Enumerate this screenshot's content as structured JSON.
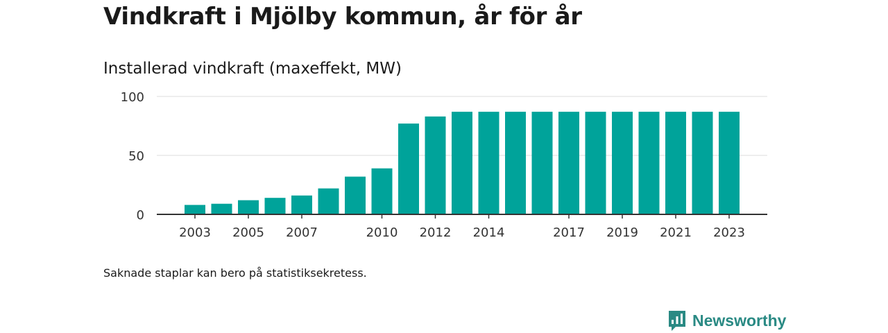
{
  "title": "Vindkraft i Mjölby kommun, år för år",
  "subtitle": "Installerad vindkraft (maxeffekt, MW)",
  "footnote": "Saknade staplar kan bero på statistiksekretess.",
  "brand": {
    "name": "Newsworthy",
    "icon": "newsworthy-logo-icon"
  },
  "colors": {
    "bar": "#00a39a",
    "grid": "#dddddd",
    "axis": "#333333",
    "brand": "#2a8a84"
  },
  "chart_data": {
    "type": "bar",
    "x": [
      2003,
      2004,
      2005,
      2006,
      2007,
      2008,
      2009,
      2010,
      2011,
      2012,
      2013,
      2014,
      2015,
      2016,
      2017,
      2018,
      2019,
      2020,
      2021,
      2022,
      2023
    ],
    "values": [
      8,
      9,
      12,
      14,
      16,
      22,
      32,
      39,
      77,
      83,
      87,
      87,
      87,
      87,
      87,
      87,
      87,
      87,
      87,
      87,
      87
    ],
    "x_tick_labels": [
      "2003",
      "2005",
      "2007",
      "2010",
      "2012",
      "2014",
      "2017",
      "2019",
      "2021",
      "2023"
    ],
    "y_ticks": [
      0,
      50,
      100
    ],
    "ylim": [
      0,
      100
    ],
    "grid": true,
    "legend": "none",
    "xlabel": "",
    "ylabel": ""
  }
}
